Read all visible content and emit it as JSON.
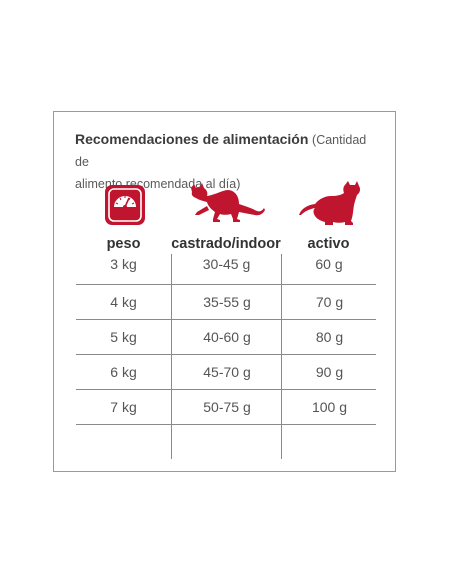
{
  "title": {
    "main": "Recomendaciones de alimentación",
    "note_start": "(Cantidad de",
    "note_end": "alimento recomendada al día)"
  },
  "icons": {
    "weight": "scale-icon",
    "indoor": "stretching-cat-icon",
    "active": "sitting-cat-icon"
  },
  "accent_color": "#c0152f",
  "columns": [
    "peso",
    "castrado/indoor",
    "activo"
  ],
  "rows": [
    [
      "3 kg",
      "30-45 g",
      "60 g"
    ],
    [
      "4 kg",
      "35-55 g",
      "70 g"
    ],
    [
      "5 kg",
      "40-60 g",
      "80 g"
    ],
    [
      "6 kg",
      "45-70 g",
      "90 g"
    ],
    [
      "7 kg",
      "50-75 g",
      "100 g"
    ],
    [
      "",
      "",
      ""
    ]
  ]
}
